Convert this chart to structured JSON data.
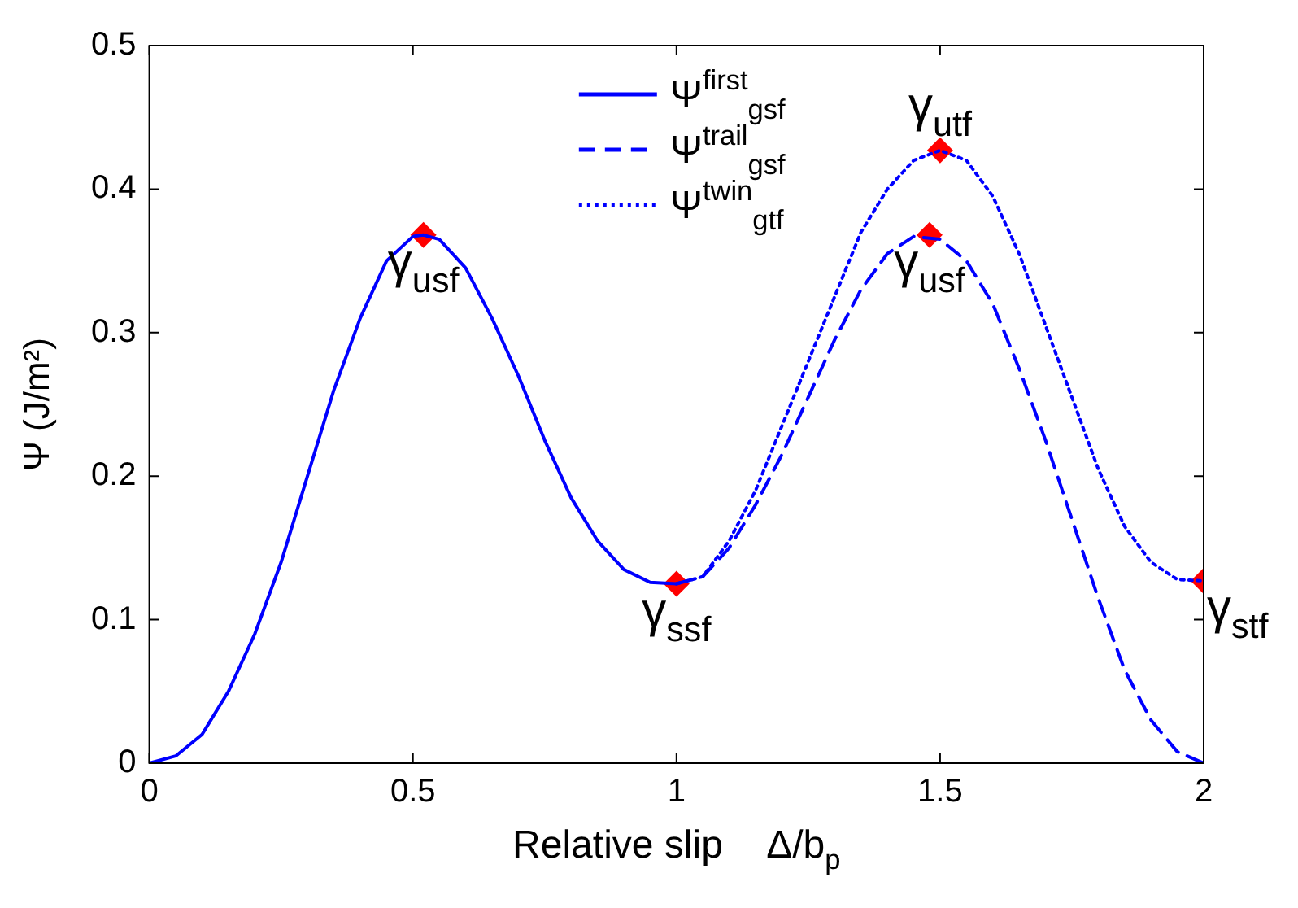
{
  "chart_data": {
    "type": "line",
    "xlabel": "Relative slip    Δ/b$_{p}$",
    "ylabel": "Ψ (J/m²)",
    "xlim": [
      0,
      2
    ],
    "xticks": [
      0,
      0.5,
      1,
      1.5,
      2
    ],
    "ylim": [
      0,
      0.5
    ],
    "yticks": [
      0,
      0.1,
      0.2,
      0.3,
      0.4,
      0.5
    ],
    "grid": false,
    "legend": "top",
    "series": [
      {
        "name": "Ψ$^{first}$$_{gsf}$",
        "color": "#0000ff",
        "line_style": "solid",
        "marker": "none",
        "x": [
          0,
          0.05,
          0.1,
          0.15,
          0.2,
          0.25,
          0.3,
          0.35,
          0.4,
          0.45,
          0.5,
          0.52,
          0.55,
          0.6,
          0.65,
          0.7,
          0.75,
          0.8,
          0.85,
          0.9,
          0.95,
          1
        ],
        "values": [
          0,
          0.005,
          0.02,
          0.05,
          0.09,
          0.14,
          0.2,
          0.26,
          0.31,
          0.35,
          0.367,
          0.368,
          0.365,
          0.345,
          0.31,
          0.27,
          0.225,
          0.185,
          0.155,
          0.135,
          0.126,
          0.125
        ]
      },
      {
        "name": "Ψ$^{trail}$$_{gsf}$",
        "color": "#0000ff",
        "line_style": "dashed",
        "marker": "none",
        "x": [
          1,
          1.05,
          1.1,
          1.15,
          1.2,
          1.25,
          1.3,
          1.35,
          1.4,
          1.45,
          1.5,
          1.55,
          1.6,
          1.65,
          1.7,
          1.75,
          1.8,
          1.85,
          1.9,
          1.95,
          2
        ],
        "values": [
          0.125,
          0.13,
          0.15,
          0.18,
          0.215,
          0.255,
          0.295,
          0.33,
          0.355,
          0.367,
          0.365,
          0.35,
          0.32,
          0.275,
          0.225,
          0.17,
          0.115,
          0.065,
          0.03,
          0.008,
          0
        ]
      },
      {
        "name": "Ψ$^{twin}$$_{gtf}$",
        "color": "#0000ff",
        "line_style": "dotted",
        "marker": "none",
        "x": [
          1,
          1.05,
          1.1,
          1.15,
          1.2,
          1.25,
          1.3,
          1.35,
          1.4,
          1.45,
          1.5,
          1.55,
          1.6,
          1.65,
          1.7,
          1.75,
          1.8,
          1.85,
          1.9,
          1.95,
          2
        ],
        "values": [
          0.125,
          0.13,
          0.155,
          0.19,
          0.235,
          0.28,
          0.325,
          0.37,
          0.4,
          0.42,
          0.427,
          0.42,
          0.395,
          0.355,
          0.305,
          0.255,
          0.205,
          0.165,
          0.14,
          0.128,
          0.127
        ]
      },
      {
        "type": "scatter",
        "color": "#ff0000",
        "marker": "diamond",
        "x": [
          0.52,
          1,
          1.48,
          1.5,
          2
        ],
        "values": [
          0.368,
          0.125,
          0.368,
          0.427,
          0.127
        ]
      }
    ],
    "annotations": [
      {
        "text": "γ$_{usf}$",
        "x": 0.52,
        "y": 0.368
      },
      {
        "text": "γ$_{ssf}$",
        "x": 1,
        "y": 0.125
      },
      {
        "text": "γ$_{usf}$",
        "x": 1.48,
        "y": 0.368
      },
      {
        "text": "γ$_{utf}$",
        "x": 1.5,
        "y": 0.427
      },
      {
        "text": "γ$_{stf}$",
        "x": 2,
        "y": 0.127
      }
    ]
  }
}
